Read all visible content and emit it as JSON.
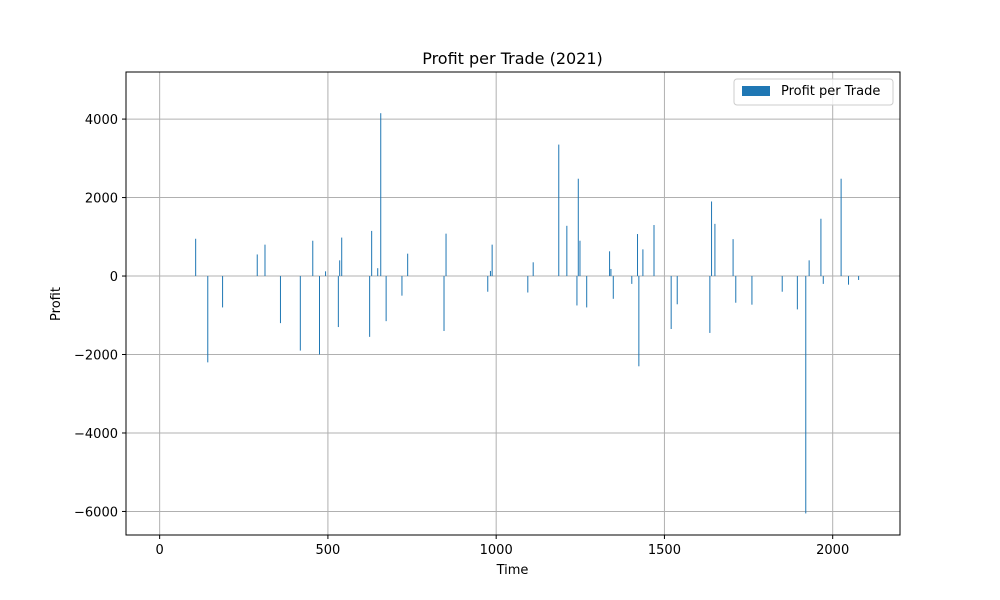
{
  "chart_data": {
    "type": "bar",
    "title": "Profit per Trade (2021)",
    "xlabel": "Time",
    "ylabel": "Profit",
    "xlim": [
      -100,
      2200
    ],
    "ylim": [
      -6600,
      5200
    ],
    "xticks": [
      0,
      500,
      1000,
      1500,
      2000
    ],
    "yticks": [
      -6000,
      -4000,
      -2000,
      0,
      2000,
      4000
    ],
    "grid": true,
    "legend_position": "top-right",
    "colors": {
      "bar": "#1f77b4",
      "grid": "#b0b0b0",
      "axis": "#000000"
    },
    "series": [
      {
        "name": "Profit per Trade",
        "x": [
          107,
          143,
          187,
          290,
          313,
          359,
          418,
          455,
          475,
          493,
          531,
          535,
          541,
          624,
          630,
          648,
          657,
          673,
          720,
          737,
          845,
          851,
          975,
          983,
          988,
          1094,
          1110,
          1186,
          1210,
          1240,
          1244,
          1249,
          1269,
          1337,
          1341,
          1348,
          1403,
          1420,
          1424,
          1436,
          1469,
          1520,
          1538,
          1635,
          1640,
          1650,
          1704,
          1712,
          1760,
          1850,
          1895,
          1920,
          1930,
          1965,
          1972,
          2025,
          2047,
          2077
        ],
        "values": [
          950,
          -2200,
          -800,
          550,
          800,
          -1200,
          -1900,
          900,
          -2000,
          120,
          -1300,
          400,
          980,
          -1550,
          1150,
          200,
          4150,
          -1150,
          -500,
          570,
          -1400,
          1080,
          -400,
          130,
          800,
          -420,
          350,
          3350,
          1280,
          -750,
          2480,
          900,
          -800,
          630,
          180,
          -580,
          -200,
          1070,
          -2300,
          680,
          1300,
          -1350,
          -720,
          -1450,
          1900,
          1330,
          940,
          -680,
          -730,
          -400,
          -850,
          -6050,
          400,
          1460,
          -200,
          2480,
          -220,
          -100
        ]
      }
    ]
  }
}
